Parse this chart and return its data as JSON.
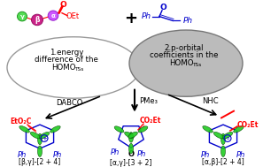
{
  "bg_color": "#ffffff",
  "fig_width": 2.97,
  "fig_height": 1.89,
  "dpi": 100,
  "left_blob_text": [
    "1.energy",
    "difference of the",
    "HOMO",
    "TSs"
  ],
  "right_blob_text": [
    "2.p-orbital",
    "coefficients in the",
    "HOMO",
    "TSs"
  ],
  "dabco_label": "DABCO",
  "pme3_label": "PMe₃",
  "nhc_label": "NHC",
  "label_left": "[β,γ]-[2 + 4]",
  "label_mid": "[α,γ]-[3 + 2]",
  "label_right": "[α,β]-[2 + 4]",
  "red": "#ff0000",
  "blue": "#0000cc",
  "green": "#22bb22",
  "black": "#000000",
  "magenta": "#dd00aa",
  "violet": "#cc55ff",
  "lime": "#44ee44",
  "gray_blob": "#bbbbbb",
  "dark_edge": "#555555"
}
